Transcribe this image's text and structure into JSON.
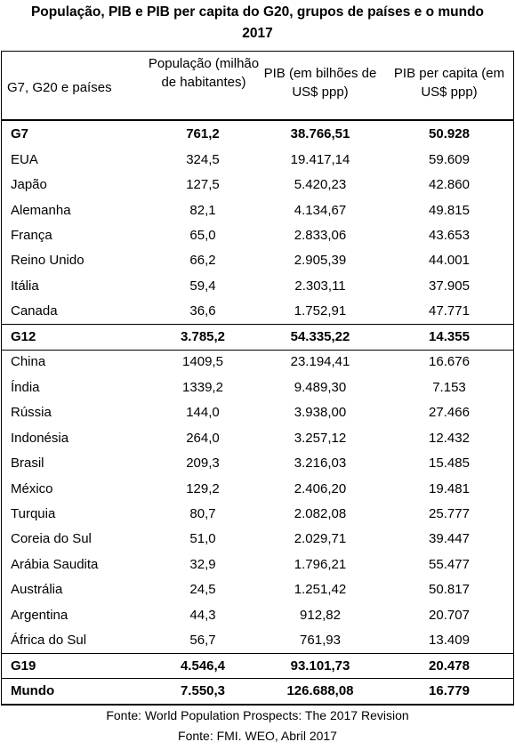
{
  "title": [
    "População, PIB e PIB per capita do G20, grupos de países e o mundo",
    "2017"
  ],
  "table": {
    "header": [
      "G7, G20 e países",
      "População (milhão de habitantes)",
      "PIB (em bilhões de US$ ppp)",
      "PIB per capita (em US$ ppp)"
    ],
    "groups": [
      {
        "total": [
          "G7",
          "761,2",
          "38.766,51",
          "50.928"
        ],
        "members": [
          [
            "EUA",
            "324,5",
            "19.417,14",
            "59.609"
          ],
          [
            "Japão",
            "127,5",
            "5.420,23",
            "42.860"
          ],
          [
            "Alemanha",
            "82,1",
            "4.134,67",
            "49.815"
          ],
          [
            "França",
            "65,0",
            "2.833,06",
            "43.653"
          ],
          [
            "Reino Unido",
            "66,2",
            "2.905,39",
            "44.001"
          ],
          [
            "Itália",
            "59,4",
            "2.303,11",
            "37.905"
          ],
          [
            "Canada",
            "36,6",
            "1.752,91",
            "47.771"
          ]
        ]
      },
      {
        "total": [
          "G12",
          "3.785,2",
          "54.335,22",
          "14.355"
        ],
        "members": [
          [
            "China",
            "1409,5",
            "23.194,41",
            "16.676"
          ],
          [
            "Índia",
            "1339,2",
            "9.489,30",
            "7.153"
          ],
          [
            "Rússia",
            "144,0",
            "3.938,00",
            "27.466"
          ],
          [
            "Indonésia",
            "264,0",
            "3.257,12",
            "12.432"
          ],
          [
            "Brasil",
            "209,3",
            "3.216,03",
            "15.485"
          ],
          [
            "México",
            "129,2",
            "2.406,20",
            "19.481"
          ],
          [
            "Turquia",
            "80,7",
            "2.082,08",
            "25.777"
          ],
          [
            "Coreia do Sul",
            "51,0",
            "2.029,71",
            "39.447"
          ],
          [
            "Arábia Saudita",
            "32,9",
            "1.796,21",
            "55.477"
          ],
          [
            "Austrália",
            "24,5",
            "1.251,42",
            "50.817"
          ],
          [
            "Argentina",
            "44,3",
            "912,82",
            "20.707"
          ],
          [
            "África do Sul",
            "56,7",
            "761,93",
            "13.409"
          ]
        ]
      },
      {
        "total": [
          "G19",
          "4.546,4",
          "93.101,73",
          "20.478"
        ]
      },
      {
        "total": [
          "Mundo",
          "7.550,3",
          "126.688,08",
          "16.779"
        ]
      }
    ]
  },
  "sources": [
    "Fonte: World Population Prospects: The 2017 Revision",
    "Fonte: FMI. WEO, Abril 2017"
  ]
}
